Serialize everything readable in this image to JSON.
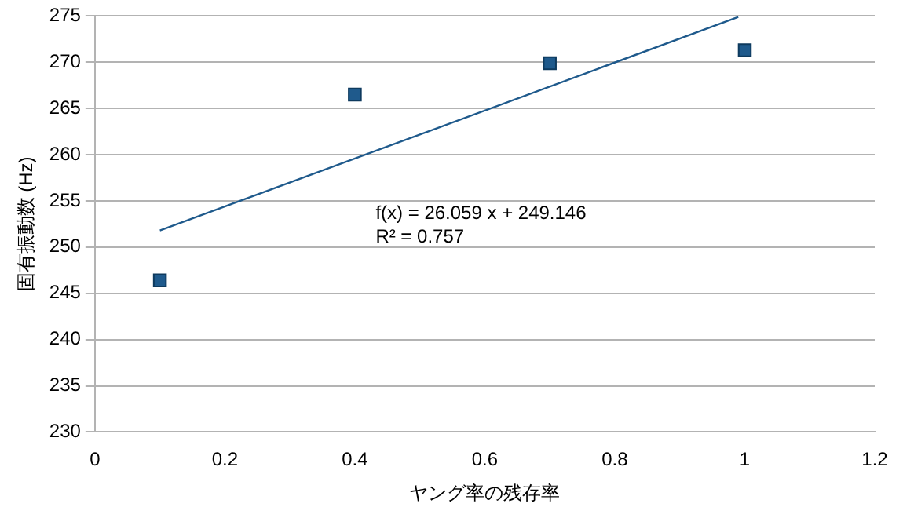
{
  "chart_data": {
    "type": "scatter",
    "xlabel": "ヤング率の残存率",
    "ylabel": "固有振動数 (Hz)",
    "xlim": [
      0,
      1.2
    ],
    "xticks": [
      0,
      0.2,
      0.4,
      0.6,
      0.8,
      1,
      1.2
    ],
    "ylim": [
      230,
      275
    ],
    "yticks": [
      230,
      235,
      240,
      245,
      250,
      255,
      260,
      265,
      270,
      275
    ],
    "grid": "y",
    "legend": false,
    "series": [
      {
        "color": "#1f5a8c",
        "marker": "square",
        "x": [
          0.1,
          0.4,
          0.7,
          1.0
        ],
        "values": [
          246.4,
          266.5,
          269.9,
          271.3
        ]
      },
      {
        "type": "line",
        "marker": "none",
        "color": "#1f5a8c",
        "x": [
          0.1,
          0.99
        ],
        "values": [
          251.8,
          274.9
        ]
      }
    ],
    "annotations": [
      "f(x) = 26.059 x + 249.146",
      "R² = 0.757"
    ]
  }
}
